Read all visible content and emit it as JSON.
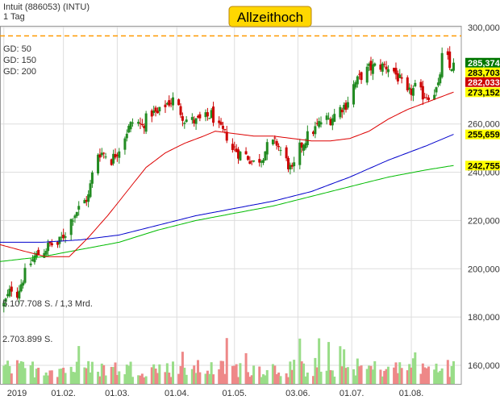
{
  "header": {
    "instrument": "Intuit (886053) (INTU)",
    "timeframe": "1 Tag"
  },
  "annotation": {
    "label": "Allzeithoch",
    "level": 296.5,
    "bg_color": "#ffd700",
    "line_color": "#ff9900"
  },
  "legend": [
    {
      "label": "GD: 50",
      "color": "#dd0000"
    },
    {
      "label": "GD: 150",
      "color": "#0000cc"
    },
    {
      "label": "GD: 200",
      "color": "#00bb00"
    }
  ],
  "price_tags": [
    {
      "value": "285,374",
      "price": 285.374,
      "bg": "#007700",
      "fg": "#ffffff"
    },
    {
      "value": "283,703",
      "price": 283.703,
      "bg": "#ffff00",
      "fg": "#000000"
    },
    {
      "value": "282,033",
      "price": 282.033,
      "bg": "#cc0000",
      "fg": "#ffffff"
    },
    {
      "value": "273,152",
      "price": 273.152,
      "bg": "#ffff00",
      "fg": "#000000"
    },
    {
      "value": "255,659",
      "price": 255.659,
      "bg": "#ffff00",
      "fg": "#000000"
    },
    {
      "value": "242,755",
      "price": 242.755,
      "bg": "#ffff00",
      "fg": "#000000"
    }
  ],
  "volume_labels": {
    "max": "5.107.708 S. / 1,3 Mrd.",
    "mid": "2.703.899 S."
  },
  "colors": {
    "up": "#228b22",
    "down": "#cc0000",
    "vol_up": "#99dd88",
    "vol_down": "#ee8888",
    "grid": "#dddddd"
  },
  "chart_data": {
    "type": "candlestick",
    "y_ticks": [
      "300,000",
      "260,000",
      "240,000",
      "220,000",
      "200,000",
      "180,000",
      "160,000"
    ],
    "y_tick_values": [
      300,
      260,
      240,
      220,
      200,
      180,
      160
    ],
    "x_ticks": [
      "2019",
      "01.02.",
      "01.03.",
      "01.04.",
      "01.05.",
      "03.06.",
      "01.07.",
      "01.08."
    ],
    "x_tick_days": [
      0,
      31,
      59,
      90,
      120,
      153,
      181,
      212
    ],
    "ylim": [
      152,
      305
    ],
    "xlim": [
      -2,
      238
    ],
    "close_keypoints": [
      [
        0,
        185
      ],
      [
        4,
        192
      ],
      [
        7,
        190
      ],
      [
        12,
        200
      ],
      [
        16,
        205
      ],
      [
        20,
        207
      ],
      [
        24,
        210
      ],
      [
        28,
        210
      ],
      [
        32,
        215
      ],
      [
        36,
        222
      ],
      [
        40,
        226
      ],
      [
        44,
        230
      ],
      [
        48,
        248
      ],
      [
        52,
        248
      ],
      [
        56,
        245
      ],
      [
        60,
        250
      ],
      [
        64,
        257
      ],
      [
        68,
        262
      ],
      [
        72,
        259
      ],
      [
        76,
        265
      ],
      [
        80,
        264
      ],
      [
        84,
        268
      ],
      [
        88,
        270
      ],
      [
        90,
        268
      ],
      [
        94,
        262
      ],
      [
        100,
        261
      ],
      [
        104,
        262
      ],
      [
        108,
        264
      ],
      [
        112,
        258
      ],
      [
        116,
        255
      ],
      [
        118,
        249
      ],
      [
        120,
        250
      ],
      [
        122,
        248
      ],
      [
        126,
        247
      ],
      [
        130,
        244
      ],
      [
        134,
        246
      ],
      [
        138,
        252
      ],
      [
        142,
        252
      ],
      [
        146,
        246
      ],
      [
        150,
        240
      ],
      [
        154,
        250
      ],
      [
        158,
        255
      ],
      [
        162,
        258
      ],
      [
        166,
        262
      ],
      [
        170,
        262
      ],
      [
        174,
        266
      ],
      [
        178,
        268
      ],
      [
        182,
        276
      ],
      [
        186,
        280
      ],
      [
        190,
        283
      ],
      [
        194,
        284
      ],
      [
        198,
        284
      ],
      [
        202,
        283
      ],
      [
        206,
        278
      ],
      [
        210,
        272
      ],
      [
        214,
        275
      ],
      [
        218,
        272
      ],
      [
        222,
        272
      ],
      [
        226,
        275
      ],
      [
        229,
        294
      ],
      [
        232,
        283
      ],
      [
        234,
        285
      ]
    ],
    "ma50": [
      [
        -2,
        210
      ],
      [
        12,
        207
      ],
      [
        22,
        205
      ],
      [
        34,
        205
      ],
      [
        44,
        213
      ],
      [
        54,
        222
      ],
      [
        64,
        232
      ],
      [
        74,
        242
      ],
      [
        84,
        248
      ],
      [
        94,
        252
      ],
      [
        104,
        255
      ],
      [
        110,
        257
      ],
      [
        120,
        256
      ],
      [
        130,
        255
      ],
      [
        140,
        255
      ],
      [
        150,
        254
      ],
      [
        160,
        253
      ],
      [
        170,
        253
      ],
      [
        180,
        254
      ],
      [
        190,
        257
      ],
      [
        200,
        262
      ],
      [
        210,
        266
      ],
      [
        220,
        269
      ],
      [
        234,
        273.2
      ]
    ],
    "ma150": [
      [
        -2,
        211
      ],
      [
        20,
        211
      ],
      [
        40,
        212
      ],
      [
        60,
        214
      ],
      [
        80,
        218
      ],
      [
        100,
        222
      ],
      [
        120,
        225
      ],
      [
        140,
        228
      ],
      [
        160,
        232
      ],
      [
        180,
        238
      ],
      [
        200,
        245
      ],
      [
        220,
        251
      ],
      [
        234,
        255.7
      ]
    ],
    "ma200": [
      [
        -2,
        203
      ],
      [
        20,
        205
      ],
      [
        40,
        208
      ],
      [
        60,
        211
      ],
      [
        80,
        216
      ],
      [
        100,
        220
      ],
      [
        120,
        223
      ],
      [
        140,
        226
      ],
      [
        160,
        230
      ],
      [
        180,
        234
      ],
      [
        200,
        238
      ],
      [
        220,
        241
      ],
      [
        234,
        242.8
      ]
    ]
  }
}
